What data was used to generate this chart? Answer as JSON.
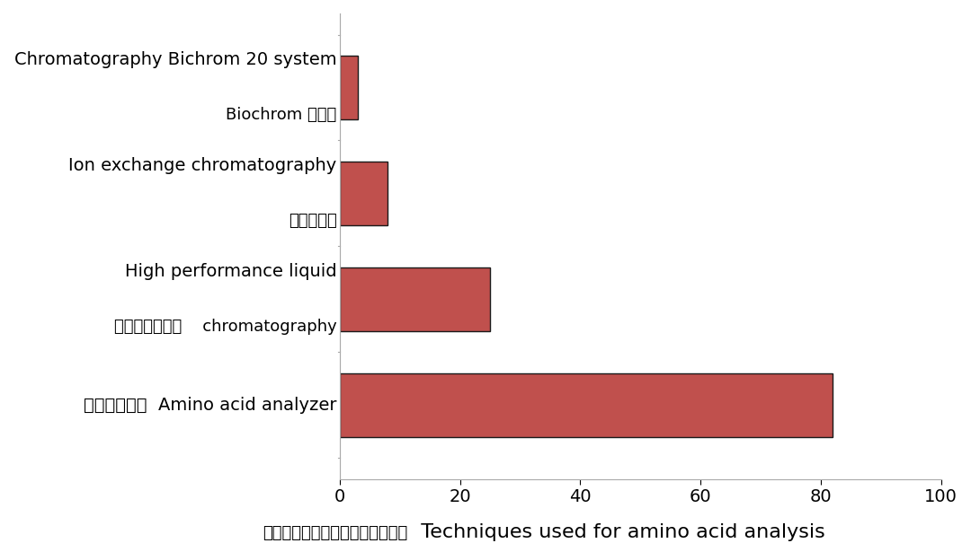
{
  "values": [
    82,
    25,
    8,
    3
  ],
  "bar_color": "#c0504d",
  "bar_edgecolor": "#1a1a1a",
  "xlim": [
    0,
    100
  ],
  "xticks": [
    0,
    20,
    40,
    60,
    80,
    100
  ],
  "xlabel_cn": "数据样本中用到的氨基酸分析技术",
  "xlabel_en": "  Techniques used for amino acid analysis",
  "background_color": "#ffffff",
  "bar_linewidth": 1.0,
  "figsize": [
    10.8,
    6.15
  ],
  "dpi": 100,
  "labels": [
    {
      "en": "氨基酸分析仪  Amino acid analyzer",
      "cn": null
    },
    {
      "en": "High performance liquid\nchromatography",
      "cn": "高效液相色谱法"
    },
    {
      "en": "Ion exchange chromatography",
      "cn": "离子色谱法"
    },
    {
      "en": "Chromatography Bichrom 20 system",
      "cn": "Biochrom 色谱法"
    }
  ]
}
